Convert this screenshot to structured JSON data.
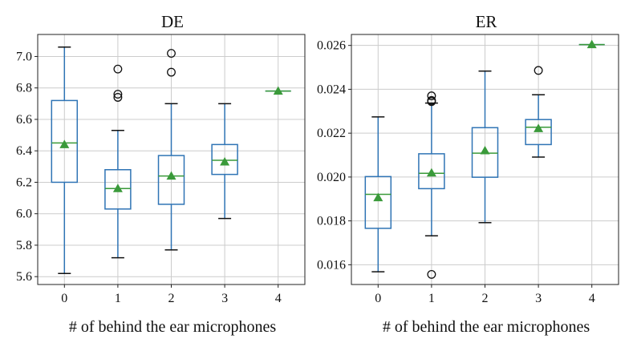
{
  "chart_data": [
    {
      "type": "box",
      "title": "DE",
      "xlabel": "# of behind the ear microphones",
      "ylabel": "",
      "categories": [
        "0",
        "1",
        "2",
        "3",
        "4"
      ],
      "ylim": [
        5.55,
        7.14
      ],
      "yticks": [
        "5.6",
        "5.8",
        "6.0",
        "6.2",
        "6.4",
        "6.6",
        "6.8",
        "7.0"
      ],
      "yticks_values": [
        5.6,
        5.8,
        6.0,
        6.2,
        6.4,
        6.6,
        6.8,
        7.0
      ],
      "grid": true,
      "boxes": [
        {
          "whislo": 5.62,
          "q1": 6.2,
          "median": 6.45,
          "q3": 6.72,
          "whishi": 7.06,
          "mean": 6.44,
          "fliers": []
        },
        {
          "whislo": 5.72,
          "q1": 6.03,
          "median": 6.16,
          "q3": 6.28,
          "whishi": 6.53,
          "mean": 6.16,
          "fliers": [
            6.92,
            6.76,
            6.74
          ]
        },
        {
          "whislo": 5.77,
          "q1": 6.06,
          "median": 6.24,
          "q3": 6.37,
          "whishi": 6.7,
          "mean": 6.24,
          "fliers": [
            7.02,
            6.9
          ]
        },
        {
          "whislo": 5.97,
          "q1": 6.25,
          "median": 6.34,
          "q3": 6.44,
          "whishi": 6.7,
          "mean": 6.33,
          "fliers": []
        },
        {
          "whislo": 6.78,
          "q1": 6.78,
          "median": 6.78,
          "q3": 6.78,
          "whishi": 6.78,
          "mean": 6.78,
          "fliers": []
        }
      ]
    },
    {
      "type": "box",
      "title": "ER",
      "xlabel": "# of behind the ear microphones",
      "ylabel": "",
      "categories": [
        "0",
        "1",
        "2",
        "3",
        "4"
      ],
      "ylim": [
        0.0151,
        0.0265
      ],
      "yticks": [
        "0.016",
        "0.018",
        "0.020",
        "0.022",
        "0.024",
        "0.026"
      ],
      "yticks_values": [
        0.016,
        0.018,
        0.02,
        0.022,
        0.024,
        0.026
      ],
      "grid": true,
      "boxes": [
        {
          "whislo": 0.01568,
          "q1": 0.01766,
          "median": 0.01921,
          "q3": 0.02002,
          "whishi": 0.02274,
          "mean": 0.01906,
          "fliers": []
        },
        {
          "whislo": 0.01732,
          "q1": 0.01947,
          "median": 0.02017,
          "q3": 0.02106,
          "whishi": 0.02337,
          "mean": 0.02019,
          "fliers": [
            0.0237,
            0.02349,
            0.02344,
            0.01556
          ]
        },
        {
          "whislo": 0.01792,
          "q1": 0.01999,
          "median": 0.02109,
          "q3": 0.02225,
          "whishi": 0.02483,
          "mean": 0.0212,
          "fliers": []
        },
        {
          "whislo": 0.02091,
          "q1": 0.02148,
          "median": 0.02227,
          "q3": 0.02262,
          "whishi": 0.02375,
          "mean": 0.02221,
          "fliers": [
            0.02486
          ]
        },
        {
          "whislo": 0.02604,
          "q1": 0.02604,
          "median": 0.02604,
          "q3": 0.02604,
          "whishi": 0.02604,
          "mean": 0.02604,
          "fliers": []
        }
      ]
    }
  ]
}
